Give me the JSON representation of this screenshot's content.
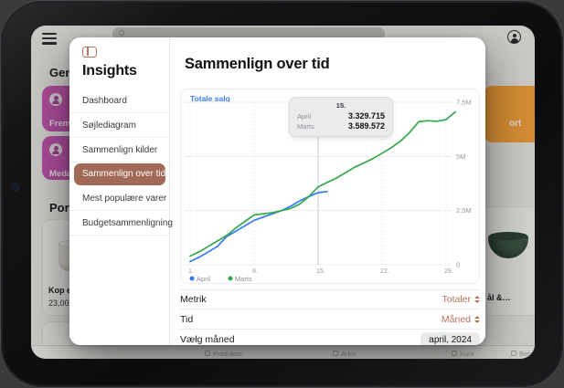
{
  "colors": {
    "accent": "#b5725a",
    "selected_pill": "#a06a57",
    "chart_blue": "#3579f6",
    "chart_green": "#35a84e",
    "magenta_button": "#cd5ab9",
    "orange_button": "#ffa83e"
  },
  "background_app": {
    "left": {
      "heading": "Genvej",
      "shortcut_buttons": [
        {
          "label": "Fremsø",
          "icon": "person-circle-icon"
        },
        {
          "label": "Medarb",
          "icon": "person-circle-icon"
        }
      ],
      "section_heading": "Portug",
      "product": {
        "name": "Kop el.",
        "price": "23,00"
      }
    },
    "right": {
      "cta_label": "ort",
      "product_name": "ål &…"
    },
    "toolbar_items": [
      "Produkter",
      "Arkiv",
      "Kurv",
      "Betaling"
    ]
  },
  "modal": {
    "sidebar": {
      "title": "Insights",
      "items": [
        {
          "label": "Dashboard",
          "selected": false
        },
        {
          "label": "Søjlediagram",
          "selected": false
        },
        {
          "label": "Sammenlign kilder",
          "selected": false
        },
        {
          "label": "Sammenlign over tid",
          "selected": true
        },
        {
          "label": "Mest populære varer",
          "selected": false
        },
        {
          "label": "Budgetsammenligning",
          "selected": false
        }
      ]
    },
    "main": {
      "title": "Sammenlign over tid",
      "controls": [
        {
          "label": "Metrik",
          "value": "Totaler",
          "control": "select"
        },
        {
          "label": "Tid",
          "value": "Måned",
          "control": "select"
        },
        {
          "label": "Vælg måned",
          "value": "april, 2024",
          "control": "button"
        }
      ]
    }
  },
  "chart_data": {
    "type": "line",
    "title": "Totale salg",
    "xlim": [
      1,
      31
    ],
    "ylim": [
      0,
      7500000
    ],
    "x_ticks": [
      1,
      8,
      15,
      22,
      29
    ],
    "x_tick_suffix": ".",
    "y_ticks": [
      {
        "v": 0,
        "label": "0"
      },
      {
        "v": 2500000,
        "label": "2,5M"
      },
      {
        "v": 5000000,
        "label": "5M"
      },
      {
        "v": 7500000,
        "label": "7,5M"
      }
    ],
    "grid": true,
    "legend_position": "bottom-left",
    "crosshair_x": 15,
    "tooltip": {
      "title": "15.",
      "rows": [
        {
          "name": "April",
          "value": "3.329.715"
        },
        {
          "name": "Marts",
          "value": "3.589.572"
        }
      ]
    },
    "series": [
      {
        "name": "April",
        "color": "#3579f6",
        "x_start": 1,
        "values": [
          150000,
          350000,
          600000,
          850000,
          1300000,
          1550000,
          1800000,
          2050000,
          2200000,
          2350000,
          2500000,
          2700000,
          2950000,
          3150000,
          3329715,
          3380000
        ]
      },
      {
        "name": "Marts",
        "color": "#35a84e",
        "x_start": 1,
        "values": [
          400000,
          600000,
          850000,
          1100000,
          1350000,
          1700000,
          2000000,
          2300000,
          2350000,
          2400000,
          2500000,
          2600000,
          2800000,
          3150000,
          3589572,
          3800000,
          4000000,
          4250000,
          4500000,
          4700000,
          4900000,
          5150000,
          5400000,
          5700000,
          6100000,
          6600000,
          6650000,
          6620000,
          6700000,
          7050000
        ]
      }
    ]
  }
}
